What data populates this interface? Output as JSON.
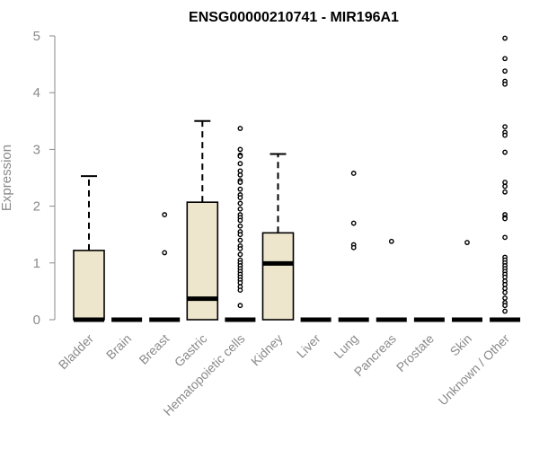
{
  "chart_data": {
    "type": "boxplot",
    "title": "ENSG00000210741 - MIR196A1",
    "ylabel": "Expression",
    "xlabel": "",
    "ylim": [
      0,
      5
    ],
    "yticks": [
      "0",
      "1",
      "2",
      "3",
      "4",
      "5"
    ],
    "colors": {
      "box_fill": "#ede6cc",
      "stroke": "#000000",
      "axis": "#8a8a8a",
      "label": "#8a8a8a"
    },
    "categories": [
      "Bladder",
      "Brain",
      "Breast",
      "Gastric",
      "Hematopoietic cells",
      "Kidney",
      "Liver",
      "Lung",
      "Pancreas",
      "Prostate",
      "Skin",
      "Unknown / Other"
    ],
    "boxes": [
      {
        "q1": 0,
        "median": 0,
        "q3": 1.22,
        "whisker_low": 0,
        "whisker_high": 2.53,
        "outliers": []
      },
      {
        "q1": 0,
        "median": 0,
        "q3": 0,
        "whisker_low": 0,
        "whisker_high": 0,
        "outliers": []
      },
      {
        "q1": 0,
        "median": 0,
        "q3": 0,
        "whisker_low": 0,
        "whisker_high": 0,
        "outliers": [
          1.85,
          1.18
        ]
      },
      {
        "q1": 0,
        "median": 0.37,
        "q3": 2.07,
        "whisker_low": 0,
        "whisker_high": 3.5,
        "outliers": []
      },
      {
        "q1": 0,
        "median": 0,
        "q3": 0,
        "whisker_low": 0,
        "whisker_high": 0,
        "outliers": [
          3.37,
          3.0,
          2.9,
          2.88,
          2.75,
          2.62,
          2.55,
          2.45,
          2.42,
          2.3,
          2.2,
          2.15,
          2.05,
          1.95,
          1.85,
          1.8,
          1.75,
          1.65,
          1.55,
          1.5,
          1.4,
          1.3,
          1.25,
          1.15,
          1.05,
          1.0,
          0.95,
          0.9,
          0.85,
          0.8,
          0.75,
          0.7,
          0.65,
          0.58,
          0.52,
          0.25
        ]
      },
      {
        "q1": 0,
        "median": 0.99,
        "q3": 1.53,
        "whisker_low": 0,
        "whisker_high": 2.92,
        "outliers": []
      },
      {
        "q1": 0,
        "median": 0,
        "q3": 0,
        "whisker_low": 0,
        "whisker_high": 0,
        "outliers": []
      },
      {
        "q1": 0,
        "median": 0,
        "q3": 0,
        "whisker_low": 0,
        "whisker_high": 0,
        "outliers": [
          2.58,
          1.7,
          1.32,
          1.27
        ]
      },
      {
        "q1": 0,
        "median": 0,
        "q3": 0,
        "whisker_low": 0,
        "whisker_high": 0,
        "outliers": [
          1.38
        ]
      },
      {
        "q1": 0,
        "median": 0,
        "q3": 0,
        "whisker_low": 0,
        "whisker_high": 0,
        "outliers": []
      },
      {
        "q1": 0,
        "median": 0,
        "q3": 0,
        "whisker_low": 0,
        "whisker_high": 0,
        "outliers": [
          1.36
        ]
      },
      {
        "q1": 0,
        "median": 0,
        "q3": 0,
        "whisker_low": 0,
        "whisker_high": 0,
        "outliers": [
          4.96,
          4.6,
          4.38,
          4.2,
          4.15,
          3.4,
          3.3,
          3.25,
          2.95,
          2.42,
          2.35,
          2.25,
          1.85,
          1.8,
          1.78,
          1.45,
          1.1,
          1.05,
          1.0,
          0.95,
          0.9,
          0.85,
          0.8,
          0.75,
          0.68,
          0.62,
          0.55,
          0.48,
          0.38,
          0.3,
          0.25,
          0.15
        ]
      }
    ]
  }
}
